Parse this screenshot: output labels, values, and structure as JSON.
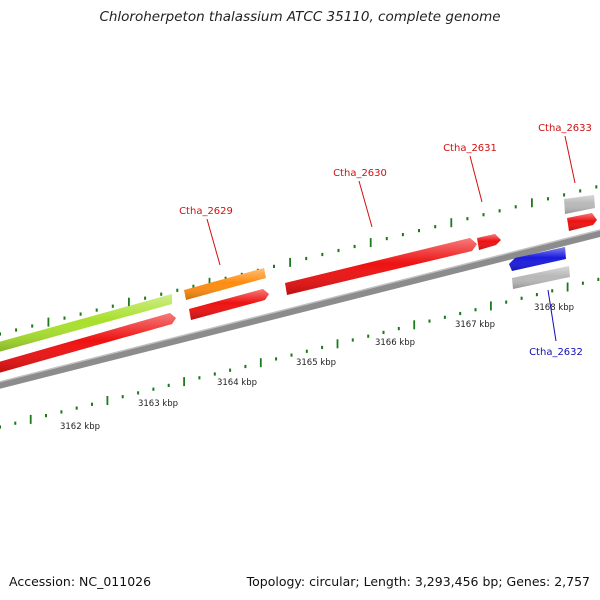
{
  "title": "Chloroherpeton thalassium ATCC 35110, complete genome",
  "footer": {
    "accession": "Accession: NC_011026",
    "stats": "Topology: circular; Length: 3,293,456 bp; Genes: 2,757"
  },
  "ruler": {
    "labels": [
      "3162 kbp",
      "3163 kbp",
      "3164 kbp",
      "3165 kbp",
      "3166 kbp",
      "3167 kbp",
      "3168 kbp"
    ]
  },
  "genes": [
    {
      "name": "",
      "color": "#a8e02c"
    },
    {
      "name": "",
      "color": "#ee1111"
    },
    {
      "name": "Ctha_2629",
      "color": "#ff8c10"
    },
    {
      "name": "",
      "color": "#ee1111"
    },
    {
      "name": "Ctha_2630",
      "color": "#ee1111"
    },
    {
      "name": "Ctha_2631",
      "color": "#ee1111"
    },
    {
      "name": "Ctha_2632",
      "color": "#1a1adf"
    },
    {
      "name": "",
      "color": "#b8b8b8"
    },
    {
      "name": "Ctha_2633",
      "color": "#b8b8b8"
    },
    {
      "name": "",
      "color": "#ee1111"
    }
  ],
  "colors": {
    "label_red": "#d01010",
    "label_blue": "#1010b0",
    "tick": "#1c7a1c",
    "backbone": "#8a8a8a"
  }
}
